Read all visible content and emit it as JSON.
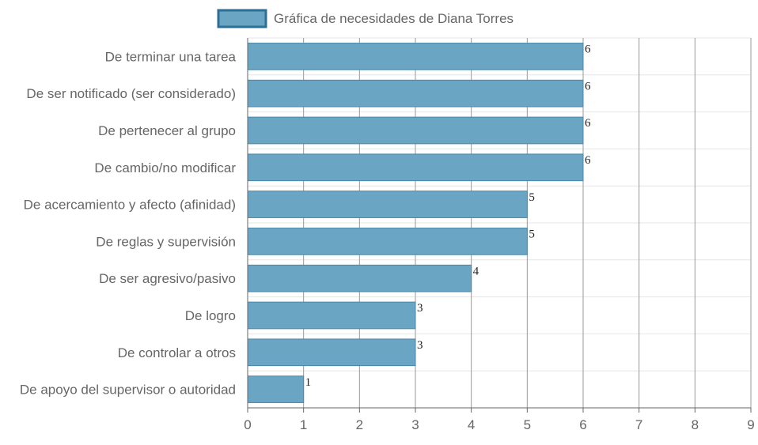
{
  "chart_data": {
    "type": "bar",
    "orientation": "horizontal",
    "legend": {
      "position": "top",
      "label": "Gráfica de necesidades de Diana Torres"
    },
    "categories": [
      "De terminar una tarea",
      "De ser notificado (ser considerado)",
      "De pertenecer al grupo",
      "De cambio/no modificar",
      "De acercamiento y afecto (afinidad)",
      "De reglas y supervisión",
      "De ser agresivo/pasivo",
      "De logro",
      "De controlar a otros",
      "De apoyo del supervisor o autoridad"
    ],
    "series": [
      {
        "name": "Gráfica de necesidades de Diana Torres",
        "values": [
          6,
          6,
          6,
          6,
          5,
          5,
          4,
          3,
          3,
          1
        ]
      }
    ],
    "xlim": [
      0,
      9
    ],
    "x_ticks": [
      "0",
      "1",
      "2",
      "3",
      "4",
      "5",
      "6",
      "7",
      "8",
      "9"
    ],
    "grid": true,
    "colors": {
      "bar_fill": "#6aa5c4",
      "bar_border": "#4a86a8",
      "legend_border": "#2e6e95",
      "grid": "#e6e6e6",
      "grid_vertical": "#9a9a9a",
      "axis": "#666666"
    }
  }
}
